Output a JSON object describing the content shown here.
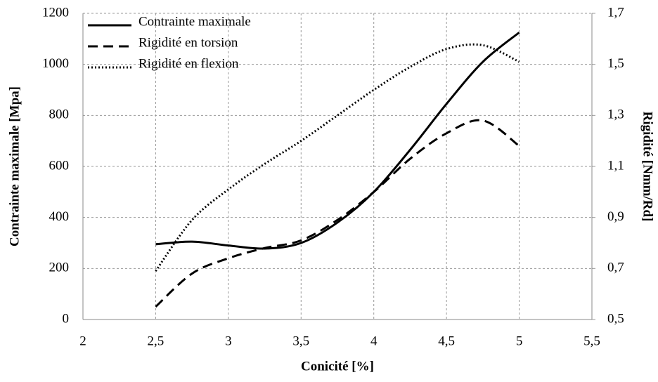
{
  "chart_data": {
    "type": "line",
    "x_label": "Conicité [%]",
    "y_label": "Contrainte maximale [Mpa]",
    "y2_label": "Rigidité [Nmm/Rd]",
    "x": [
      2.5,
      2.75,
      3,
      3.25,
      3.5,
      3.75,
      4,
      4.25,
      4.5,
      4.75,
      5
    ],
    "series": [
      {
        "name": "Contrainte maximale",
        "color": "#000000",
        "style": "solid",
        "values": [
          295,
          305,
          290,
          278,
          300,
          380,
          500,
          665,
          845,
          1010,
          1125
        ]
      },
      {
        "name": "Rigidité  en torsion",
        "color": "#000000",
        "style": "dashed",
        "axis": "y2",
        "values": [
          0.55,
          0.68,
          0.74,
          0.78,
          0.81,
          0.89,
          1.0,
          1.13,
          1.23,
          1.28,
          1.18
        ]
      },
      {
        "name": "Rigidité  en flexion",
        "color": "#000000",
        "style": "dotted",
        "axis": "y2",
        "values": [
          0.69,
          0.89,
          1.01,
          1.11,
          1.2,
          1.3,
          1.4,
          1.49,
          1.56,
          1.575,
          1.51
        ]
      }
    ],
    "xlim": [
      2,
      5.5
    ],
    "xticks": [
      2,
      {
        "value": 2.5,
        "label": "2,5"
      },
      3,
      {
        "value": 3.5,
        "label": "3,5"
      },
      4,
      {
        "value": 4.5,
        "label": "4,5"
      },
      5,
      {
        "value": 5.5,
        "label": "5,5"
      }
    ],
    "ylim": [
      0,
      1200
    ],
    "yticks": [
      0,
      200,
      400,
      600,
      800,
      1000,
      1200
    ],
    "y2lim": [
      0.5,
      1.7
    ],
    "y2ticks": [
      {
        "value": 0.5,
        "label": "0,5"
      },
      {
        "value": 0.7,
        "label": "0,7"
      },
      {
        "value": 0.9,
        "label": "0,9"
      },
      {
        "value": 1.1,
        "label": "1,1"
      },
      {
        "value": 1.3,
        "label": "1,3"
      },
      {
        "value": 1.5,
        "label": "1,5"
      },
      {
        "value": 1.7,
        "label": "1,7"
      }
    ],
    "grid": true,
    "legend": "upper-left"
  }
}
